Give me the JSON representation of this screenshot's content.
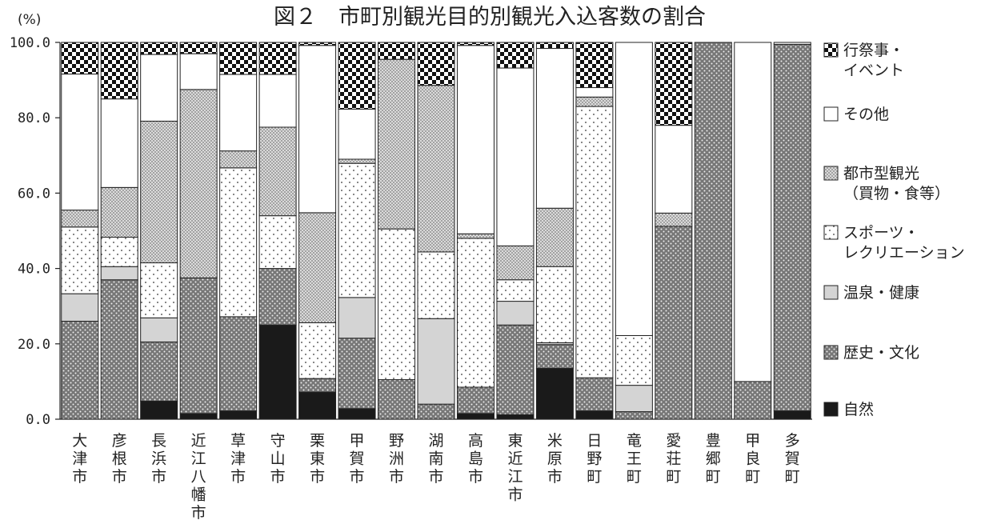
{
  "chart_data": {
    "type": "bar",
    "stacked": true,
    "title": "図２　市町別観光目的別観光入込客数の割合",
    "unit_label": "(%)",
    "ylim": [
      0,
      100
    ],
    "yticks": [
      "0.0",
      "20.0",
      "40.0",
      "60.0",
      "80.0",
      "100.0"
    ],
    "categories": [
      "大津市",
      "彦根市",
      "長浜市",
      "近江八幡市",
      "草津市",
      "守山市",
      "栗東市",
      "甲賀市",
      "野洲市",
      "湖南市",
      "高島市",
      "東近江市",
      "米原市",
      "日野町",
      "竜王町",
      "愛荘町",
      "豊郷町",
      "甲良町",
      "多賀町"
    ],
    "series": [
      {
        "name": "自然",
        "pattern": "solid",
        "values": [
          0,
          0,
          4.8,
          1.5,
          2.2,
          25,
          7.2,
          2.8,
          0,
          0,
          1.5,
          1.2,
          13.5,
          2.2,
          0,
          0,
          0,
          0,
          2.2
        ]
      },
      {
        "name": "歴史・文化",
        "pattern": "dots",
        "values": [
          26,
          37,
          15.7,
          36,
          25,
          15,
          3.6,
          18.7,
          10.5,
          4,
          7,
          23.8,
          6.3,
          8.8,
          2,
          51.2,
          100,
          10,
          97.3
        ]
      },
      {
        "name": "温泉・健康",
        "pattern": "gray",
        "values": [
          7.3,
          3.5,
          6.4,
          0,
          0,
          0,
          0,
          10.8,
          0,
          22.7,
          0,
          6.3,
          0.5,
          0,
          7,
          0,
          0,
          0,
          0
        ]
      },
      {
        "name": "スポーツ・レクリエーション",
        "pattern": "sparse",
        "values": [
          17.7,
          7.8,
          14.6,
          0,
          39.5,
          14,
          14.8,
          35.6,
          40,
          17.7,
          39.5,
          5.7,
          20.2,
          72,
          13.2,
          0,
          0,
          0,
          0
        ]
      },
      {
        "name": "都市型観光（買物・食等）",
        "pattern": "hatch",
        "values": [
          4.5,
          13.2,
          37.6,
          50,
          4.5,
          23.5,
          29.2,
          1.1,
          45,
          44.2,
          1.2,
          9,
          15.5,
          2.5,
          0,
          3.5,
          0,
          0,
          0
        ]
      },
      {
        "name": "その他",
        "pattern": "white",
        "values": [
          36.1,
          23.5,
          17.7,
          9.5,
          20.3,
          14,
          44.4,
          13.3,
          0,
          0,
          50,
          47.2,
          42.4,
          2.5,
          77.8,
          23.3,
          0,
          90,
          0.5
        ]
      },
      {
        "name": "行祭事・イベント",
        "pattern": "checker",
        "values": [
          8.4,
          15,
          3.2,
          3,
          8.5,
          8.5,
          0.8,
          17.7,
          4.5,
          11.4,
          0.8,
          6.8,
          1.6,
          12,
          0,
          22,
          0,
          0,
          0
        ]
      }
    ],
    "legend_position": "right",
    "legend_order": [
      "行祭事・イベント",
      "その他",
      "都市型観光（買物・食等）",
      "スポーツ・レクリエーション",
      "温泉・健康",
      "歴史・文化",
      "自然"
    ],
    "legend_display_lines": {
      "行祭事・イベント": [
        "行祭事・",
        "イベント"
      ],
      "その他": [
        "その他"
      ],
      "都市型観光（買物・食等）": [
        "都市型観光",
        "（買物・食等）"
      ],
      "スポーツ・レクリエーション": [
        "スポーツ・",
        "レクリエーション"
      ],
      "温泉・健康": [
        "温泉・健康"
      ],
      "歴史・文化": [
        "歴史・文化"
      ],
      "自然": [
        "自然"
      ]
    },
    "grid": false
  }
}
